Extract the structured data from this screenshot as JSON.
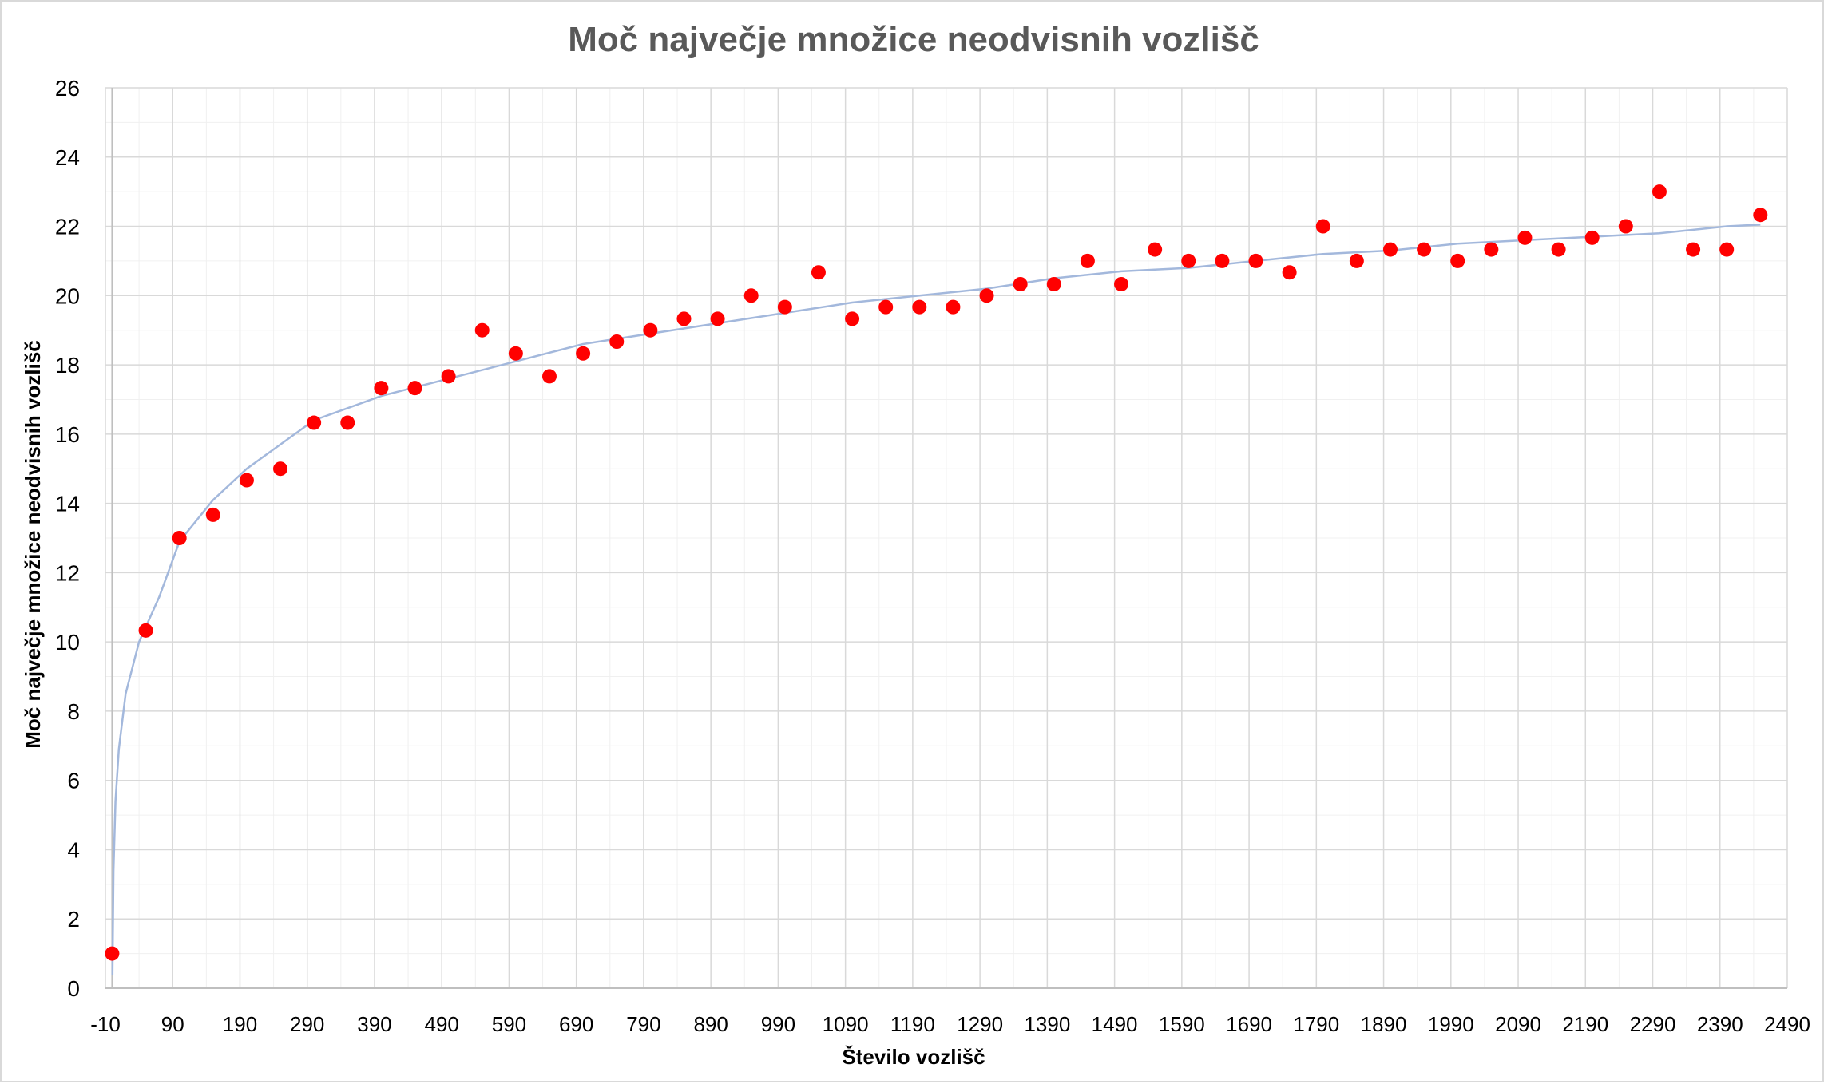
{
  "chart_data": {
    "type": "scatter",
    "title": "Moč največje množice neodvisnih vozlišč",
    "xlabel": "Število vozlišč",
    "ylabel": "Moč največje množice neodvisnih vozlišč",
    "xlim": [
      -10,
      2490
    ],
    "ylim": [
      0,
      26
    ],
    "x_major_step": 100,
    "y_major_step": 2,
    "grid": true,
    "legend": "none",
    "x_tick_labels": [
      "-10",
      "90",
      "190",
      "290",
      "390",
      "490",
      "590",
      "690",
      "790",
      "890",
      "990",
      "1090",
      "1190",
      "1290",
      "1390",
      "1490",
      "1590",
      "1690",
      "1790",
      "1890",
      "1990",
      "2090",
      "2190",
      "2290",
      "2390",
      "2490"
    ],
    "y_tick_labels": [
      "0",
      "2",
      "4",
      "6",
      "8",
      "10",
      "12",
      "14",
      "16",
      "18",
      "20",
      "22",
      "24",
      "26"
    ],
    "series": [
      {
        "marker_color": "#ff0000",
        "x": [
          0,
          50,
          100,
          150,
          200,
          250,
          300,
          350,
          400,
          450,
          500,
          550,
          600,
          650,
          700,
          750,
          800,
          850,
          900,
          950,
          1000,
          1050,
          1100,
          1150,
          1200,
          1250,
          1300,
          1350,
          1400,
          1450,
          1500,
          1550,
          1600,
          1650,
          1700,
          1750,
          1800,
          1850,
          1900,
          1950,
          2000,
          2050,
          2100,
          2150,
          2200,
          2250,
          2300,
          2350,
          2400,
          2450
        ],
        "y": [
          1,
          10.33,
          13,
          13.67,
          14.67,
          15,
          16.33,
          16.33,
          17.33,
          17.33,
          17.67,
          19,
          18.33,
          17.67,
          18.33,
          18.67,
          19,
          19.33,
          19.33,
          20,
          19.67,
          20.67,
          19.33,
          19.67,
          19.67,
          19.67,
          20,
          20.33,
          20.33,
          21,
          20.33,
          21.33,
          21,
          21,
          21,
          20.67,
          22,
          21,
          21.33,
          21.33,
          21,
          21.33,
          21.67,
          21.33,
          21.67,
          22,
          23,
          21.33,
          21.33,
          22.33
        ]
      }
    ],
    "trendline": {
      "type": "logarithmic",
      "color": "#a3b8dc",
      "x": [
        0.5,
        2,
        5,
        10,
        20,
        40,
        70,
        100,
        150,
        200,
        300,
        400,
        500,
        600,
        700,
        800,
        900,
        1000,
        1100,
        1200,
        1300,
        1400,
        1500,
        1600,
        1700,
        1800,
        1900,
        2000,
        2100,
        2200,
        2300,
        2400,
        2450
      ],
      "y": [
        0.37,
        3.4,
        5.4,
        6.9,
        8.5,
        10.0,
        11.3,
        12.9,
        14.1,
        15.0,
        16.4,
        17.1,
        17.6,
        18.1,
        18.6,
        18.9,
        19.2,
        19.5,
        19.8,
        20.0,
        20.2,
        20.5,
        20.7,
        20.8,
        21.0,
        21.2,
        21.3,
        21.5,
        21.6,
        21.7,
        21.8,
        22.0,
        22.05
      ]
    }
  }
}
